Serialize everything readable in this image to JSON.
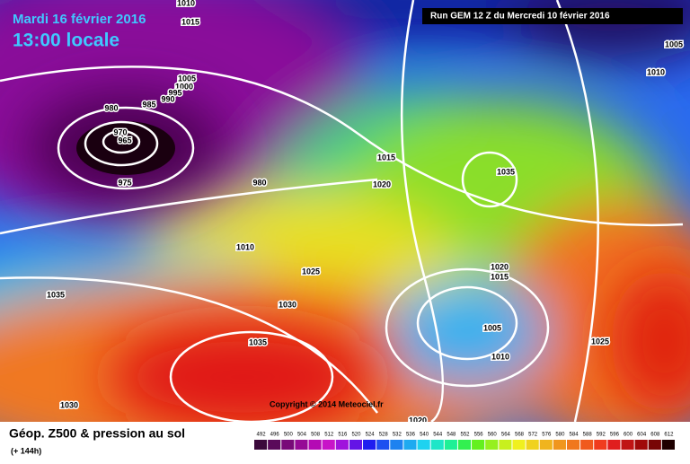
{
  "header": {
    "date": "Mardi 16 février 2016",
    "time": "13:00 locale",
    "run": "Run GEM 12 Z du Mercredi 10 février 2016"
  },
  "copyright": "Copyright © 2014 Meteociel.fr",
  "isobar_labels": [
    1010,
    1015,
    1005,
    1000,
    995,
    990,
    980,
    985,
    970,
    965,
    975,
    980,
    1015,
    1020,
    1035,
    1010,
    1025,
    1035,
    1030,
    1035,
    1030,
    1020,
    1015,
    1005,
    1010,
    1025,
    1020,
    1005,
    1010
  ],
  "legend": {
    "title": "Géop. Z500 & pression au sol",
    "subtitle": "(+ 144h)",
    "values": [
      492,
      496,
      500,
      504,
      508,
      512,
      516,
      520,
      524,
      528,
      532,
      536,
      540,
      544,
      548,
      552,
      556,
      560,
      564,
      568,
      572,
      576,
      580,
      584,
      588,
      592,
      596,
      600,
      604,
      608,
      612
    ],
    "colors": [
      "#3c0a3c",
      "#5a0a5a",
      "#780a78",
      "#960a96",
      "#b40ab4",
      "#c814c8",
      "#a014dc",
      "#6414e6",
      "#1e1ef0",
      "#1e50f0",
      "#1e82f0",
      "#1eaaf0",
      "#1ed2f0",
      "#1ee6c8",
      "#1ef096",
      "#32f050",
      "#64f01e",
      "#96f01e",
      "#c8f01e",
      "#f0f01e",
      "#f0d21e",
      "#f0b41e",
      "#f0961e",
      "#f0781e",
      "#f05a1e",
      "#f03c1e",
      "#e01e1e",
      "#c01414",
      "#a00a0a",
      "#780505",
      "#1e0000"
    ]
  }
}
